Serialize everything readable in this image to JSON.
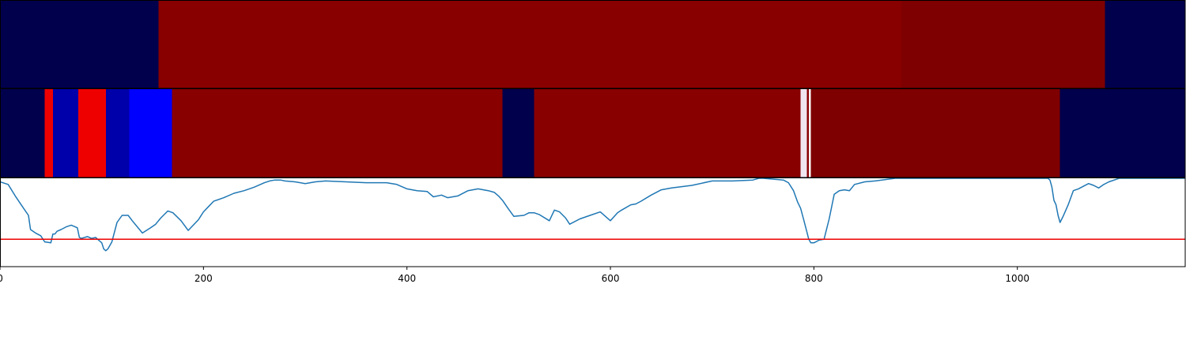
{
  "chart_data": [
    {
      "type": "heatmap",
      "row": "top",
      "segments": [
        {
          "start": 0,
          "end": 156,
          "color": "#00004c"
        },
        {
          "start": 156,
          "end": 886,
          "color": "#880000"
        },
        {
          "start": 886,
          "end": 1086,
          "color": "#7e0000"
        },
        {
          "start": 1086,
          "end": 1165,
          "color": "#00004c"
        }
      ]
    },
    {
      "type": "heatmap",
      "row": "middle",
      "segments": [
        {
          "start": 0,
          "end": 44,
          "color": "#00004c"
        },
        {
          "start": 44,
          "end": 52,
          "color": "#ee0000"
        },
        {
          "start": 52,
          "end": 77,
          "color": "#0000aa"
        },
        {
          "start": 77,
          "end": 104,
          "color": "#ee0000"
        },
        {
          "start": 104,
          "end": 127,
          "color": "#0000aa"
        },
        {
          "start": 127,
          "end": 169,
          "color": "#0000ff"
        },
        {
          "start": 169,
          "end": 494,
          "color": "#880000"
        },
        {
          "start": 494,
          "end": 525,
          "color": "#00004c"
        },
        {
          "start": 525,
          "end": 787,
          "color": "#880000"
        },
        {
          "start": 787,
          "end": 793,
          "color": "#f0e6f0"
        },
        {
          "start": 793,
          "end": 795,
          "color": "#880000"
        },
        {
          "start": 795,
          "end": 797,
          "color": "#ffffff"
        },
        {
          "start": 797,
          "end": 1042,
          "color": "#7e0000"
        },
        {
          "start": 1042,
          "end": 1165,
          "color": "#00004c"
        }
      ]
    },
    {
      "type": "line",
      "xlim": [
        0,
        1165
      ],
      "ylim": [
        0,
        1
      ],
      "xticks": [
        0,
        200,
        400,
        600,
        800,
        1000
      ],
      "xtick_labels": [
        "0",
        "200",
        "400",
        "600",
        "800",
        "1000"
      ],
      "threshold": 0.31,
      "series_color": "#1f77b4",
      "threshold_color": "#ee0000",
      "x": [
        0,
        8,
        15,
        22,
        28,
        30,
        35,
        40,
        44,
        50,
        52,
        54,
        56,
        60,
        65,
        70,
        76,
        78,
        80,
        86,
        90,
        94,
        100,
        102,
        104,
        106,
        110,
        115,
        120,
        126,
        130,
        140,
        148,
        153,
        158,
        165,
        170,
        178,
        185,
        195,
        200,
        205,
        210,
        220,
        230,
        240,
        250,
        260,
        265,
        270,
        276,
        280,
        290,
        300,
        310,
        320,
        340,
        360,
        380,
        390,
        400,
        410,
        420,
        426,
        434,
        440,
        450,
        460,
        470,
        480,
        486,
        490,
        494,
        500,
        505,
        515,
        520,
        525,
        530,
        540,
        545,
        550,
        556,
        560,
        570,
        580,
        590,
        600,
        607,
        611,
        620,
        625,
        630,
        640,
        650,
        660,
        680,
        700,
        720,
        740,
        746,
        750,
        760,
        770,
        775,
        780,
        784,
        787,
        790,
        793,
        795,
        797,
        800,
        802,
        805,
        810,
        815,
        820,
        825,
        830,
        835,
        840,
        850,
        860,
        880,
        900,
        930,
        960,
        990,
        1020,
        1030,
        1032,
        1034,
        1036,
        1038,
        1040,
        1042,
        1045,
        1050,
        1055,
        1060,
        1065,
        1070,
        1075,
        1080,
        1085,
        1090,
        1100,
        1110,
        1120,
        1140,
        1165
      ],
      "y": [
        0.96,
        0.93,
        0.8,
        0.68,
        0.58,
        0.42,
        0.38,
        0.35,
        0.28,
        0.27,
        0.37,
        0.37,
        0.4,
        0.42,
        0.45,
        0.47,
        0.44,
        0.33,
        0.32,
        0.34,
        0.32,
        0.33,
        0.27,
        0.2,
        0.18,
        0.2,
        0.28,
        0.5,
        0.58,
        0.58,
        0.52,
        0.38,
        0.44,
        0.48,
        0.55,
        0.63,
        0.61,
        0.52,
        0.41,
        0.53,
        0.62,
        0.68,
        0.74,
        0.78,
        0.83,
        0.86,
        0.9,
        0.95,
        0.97,
        0.98,
        0.98,
        0.97,
        0.96,
        0.94,
        0.96,
        0.97,
        0.96,
        0.95,
        0.95,
        0.93,
        0.88,
        0.86,
        0.85,
        0.79,
        0.81,
        0.78,
        0.8,
        0.86,
        0.88,
        0.86,
        0.84,
        0.8,
        0.75,
        0.65,
        0.57,
        0.58,
        0.61,
        0.61,
        0.59,
        0.52,
        0.64,
        0.62,
        0.55,
        0.48,
        0.54,
        0.58,
        0.62,
        0.52,
        0.61,
        0.64,
        0.7,
        0.71,
        0.74,
        0.81,
        0.87,
        0.89,
        0.92,
        0.97,
        0.97,
        0.98,
        1.0,
        1.0,
        0.99,
        0.98,
        0.95,
        0.86,
        0.73,
        0.66,
        0.53,
        0.4,
        0.31,
        0.27,
        0.27,
        0.28,
        0.3,
        0.31,
        0.54,
        0.82,
        0.86,
        0.87,
        0.86,
        0.93,
        0.96,
        0.97,
        1.0,
        1.0,
        1.0,
        1.0,
        1.0,
        1.0,
        1.0,
        0.98,
        0.9,
        0.75,
        0.7,
        0.58,
        0.5,
        0.57,
        0.7,
        0.86,
        0.88,
        0.91,
        0.94,
        0.92,
        0.89,
        0.93,
        0.96,
        1.0,
        1.0,
        1.0,
        1.0,
        1.0
      ]
    }
  ]
}
